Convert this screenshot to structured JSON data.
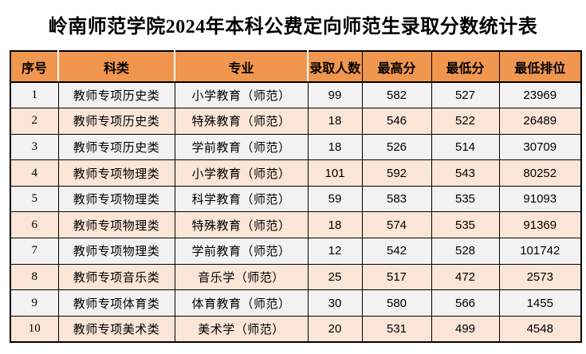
{
  "title": "岭南师范学院2024年本科公费定向师范生录取分数统计表",
  "table": {
    "columns": [
      "序号",
      "科类",
      "专业",
      "录取人数",
      "最高分",
      "最低分",
      "最低排位"
    ],
    "rows": [
      [
        "1",
        "教师专项历史类",
        "小学教育（师范）",
        "99",
        "582",
        "527",
        "23969"
      ],
      [
        "2",
        "教师专项历史类",
        "特殊教育（师范）",
        "18",
        "546",
        "522",
        "26489"
      ],
      [
        "3",
        "教师专项历史类",
        "学前教育（师范）",
        "18",
        "526",
        "514",
        "30709"
      ],
      [
        "4",
        "教师专项物理类",
        "小学教育（师范）",
        "101",
        "592",
        "543",
        "80252"
      ],
      [
        "5",
        "教师专项物理类",
        "科学教育（师范）",
        "59",
        "583",
        "535",
        "91093"
      ],
      [
        "6",
        "教师专项物理类",
        "特殊教育（师范）",
        "18",
        "574",
        "535",
        "91369"
      ],
      [
        "7",
        "教师专项物理类",
        "学前教育（师范）",
        "12",
        "542",
        "528",
        "101742"
      ],
      [
        "8",
        "教师专项音乐类",
        "音乐学（师范）",
        "25",
        "517",
        "472",
        "2573"
      ],
      [
        "9",
        "教师专项体育类",
        "体育教育（师范）",
        "30",
        "580",
        "566",
        "1455"
      ],
      [
        "10",
        "教师专项美术类",
        "美术学（师范）",
        "20",
        "531",
        "499",
        "4548"
      ]
    ],
    "colors": {
      "page_bg": "#FFFFFF",
      "header_bg": "#F0964E",
      "row_odd_bg": "#F2F2F2",
      "row_even_bg": "#FBE5D6",
      "border": "#000000",
      "header_divider": "#FFFFFF",
      "text": "#000000"
    }
  }
}
